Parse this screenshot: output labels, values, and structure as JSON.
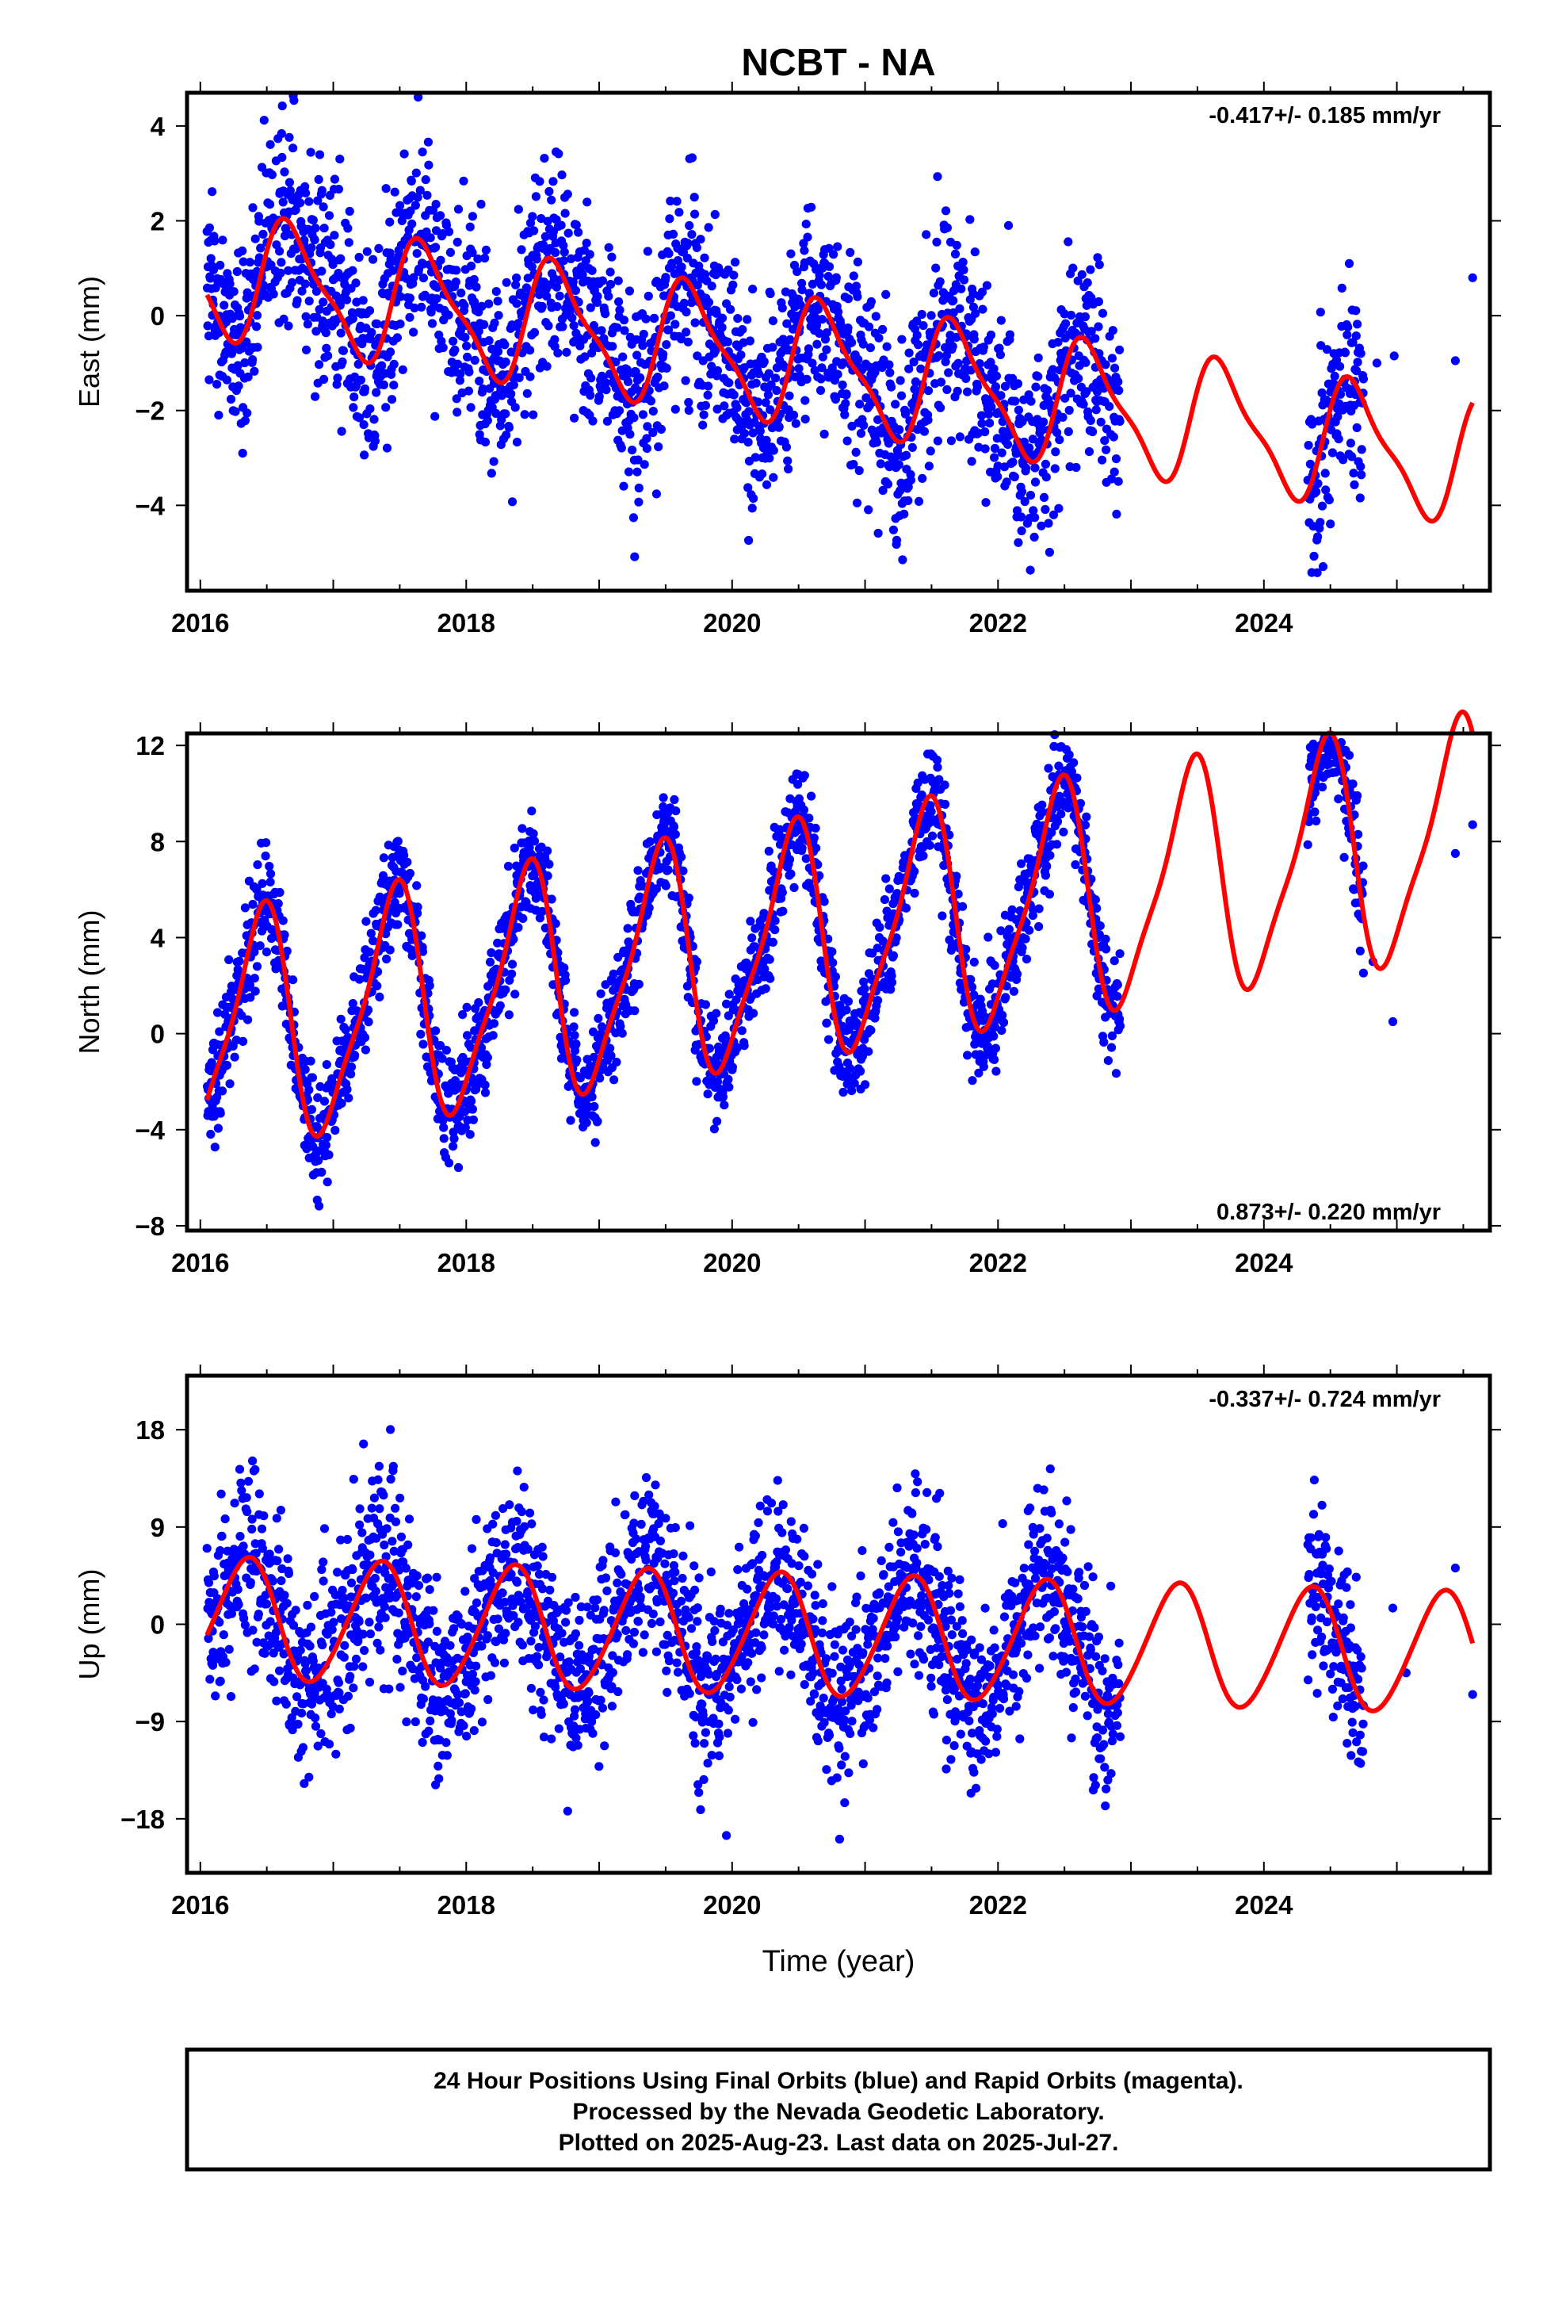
{
  "title": "NCBT - NA",
  "xlabel": "Time (year)",
  "footer": [
    "24 Hour Positions Using Final Orbits (blue) and Rapid Orbits (magenta).",
    "Processed by the Nevada Geodetic Laboratory.",
    "Plotted on 2025-Aug-23. Last data on 2025-Jul-27."
  ],
  "colors": {
    "data_points": "#0000ff",
    "model_fit": "#ff0000",
    "frame": "#000000"
  },
  "chart_data": [
    {
      "type": "scatter",
      "component": "East",
      "ylabel": "East (mm)",
      "rate_text": "-0.417+/- 0.185 mm/yr",
      "xlim": [
        2015.9,
        2025.7
      ],
      "ylim": [
        -5.8,
        4.7
      ],
      "x_ticks": [
        2016,
        2018,
        2020,
        2022,
        2024
      ],
      "y_ticks": [
        -4,
        -2,
        0,
        2,
        4
      ],
      "model": {
        "trend_mm_per_yr": -0.417,
        "intercept_mm": 0.9,
        "ref_year": 2016,
        "annual_cos": -0.45,
        "annual_sin": -1.15,
        "semiannual_cos": 0.22,
        "semiannual_sin": 0.28
      },
      "scatter_sd_mm": 1.05,
      "observed_segments": [
        [
          2016.05,
          2022.92
        ],
        [
          2024.33,
          2024.75
        ]
      ],
      "sparse_points": [
        [
          2024.85,
          -1.0
        ],
        [
          2024.98,
          -0.85
        ],
        [
          2025.44,
          -0.95
        ],
        [
          2025.57,
          0.8
        ]
      ]
    },
    {
      "type": "scatter",
      "component": "North",
      "ylabel": "North (mm)",
      "rate_text": "0.873+/- 0.220 mm/yr",
      "xlim": [
        2015.9,
        2025.7
      ],
      "ylim": [
        -8.2,
        12.5
      ],
      "x_ticks": [
        2016,
        2018,
        2020,
        2022,
        2024
      ],
      "y_ticks": [
        -8,
        -4,
        0,
        4,
        8,
        12
      ],
      "model": {
        "trend_mm_per_yr": 0.873,
        "intercept_mm": -0.2,
        "ref_year": 2016,
        "annual_cos": -4.4,
        "annual_sin": 1.6,
        "semiannual_cos": 0.9,
        "semiannual_sin": 0.6
      },
      "scatter_sd_mm": 1.15,
      "observed_segments": [
        [
          2016.05,
          2022.92
        ],
        [
          2024.33,
          2024.75
        ]
      ],
      "sparse_points": [
        [
          2024.82,
          3.0
        ],
        [
          2024.97,
          0.5
        ],
        [
          2025.44,
          7.5
        ],
        [
          2025.57,
          8.7
        ]
      ]
    },
    {
      "type": "scatter",
      "component": "Up",
      "ylabel": "Up (mm)",
      "rate_text": "-0.337+/- 0.724 mm/yr",
      "xlim": [
        2015.9,
        2025.7
      ],
      "ylim": [
        -23,
        23
      ],
      "x_ticks": [
        2016,
        2018,
        2020,
        2022,
        2024
      ],
      "y_ticks": [
        -18,
        -9,
        0,
        9,
        18
      ],
      "model": {
        "trend_mm_per_yr": -0.337,
        "intercept_mm": 0.5,
        "ref_year": 2016,
        "annual_cos": -3.2,
        "annual_sin": 4.6,
        "semiannual_cos": 0.4,
        "semiannual_sin": -0.3
      },
      "scatter_sd_mm": 4.2,
      "observed_segments": [
        [
          2016.05,
          2022.92
        ],
        [
          2024.33,
          2024.75
        ]
      ],
      "sparse_points": [
        [
          2024.97,
          1.5
        ],
        [
          2025.07,
          -4.5
        ],
        [
          2025.44,
          5.2
        ],
        [
          2025.57,
          -6.5
        ]
      ]
    }
  ]
}
